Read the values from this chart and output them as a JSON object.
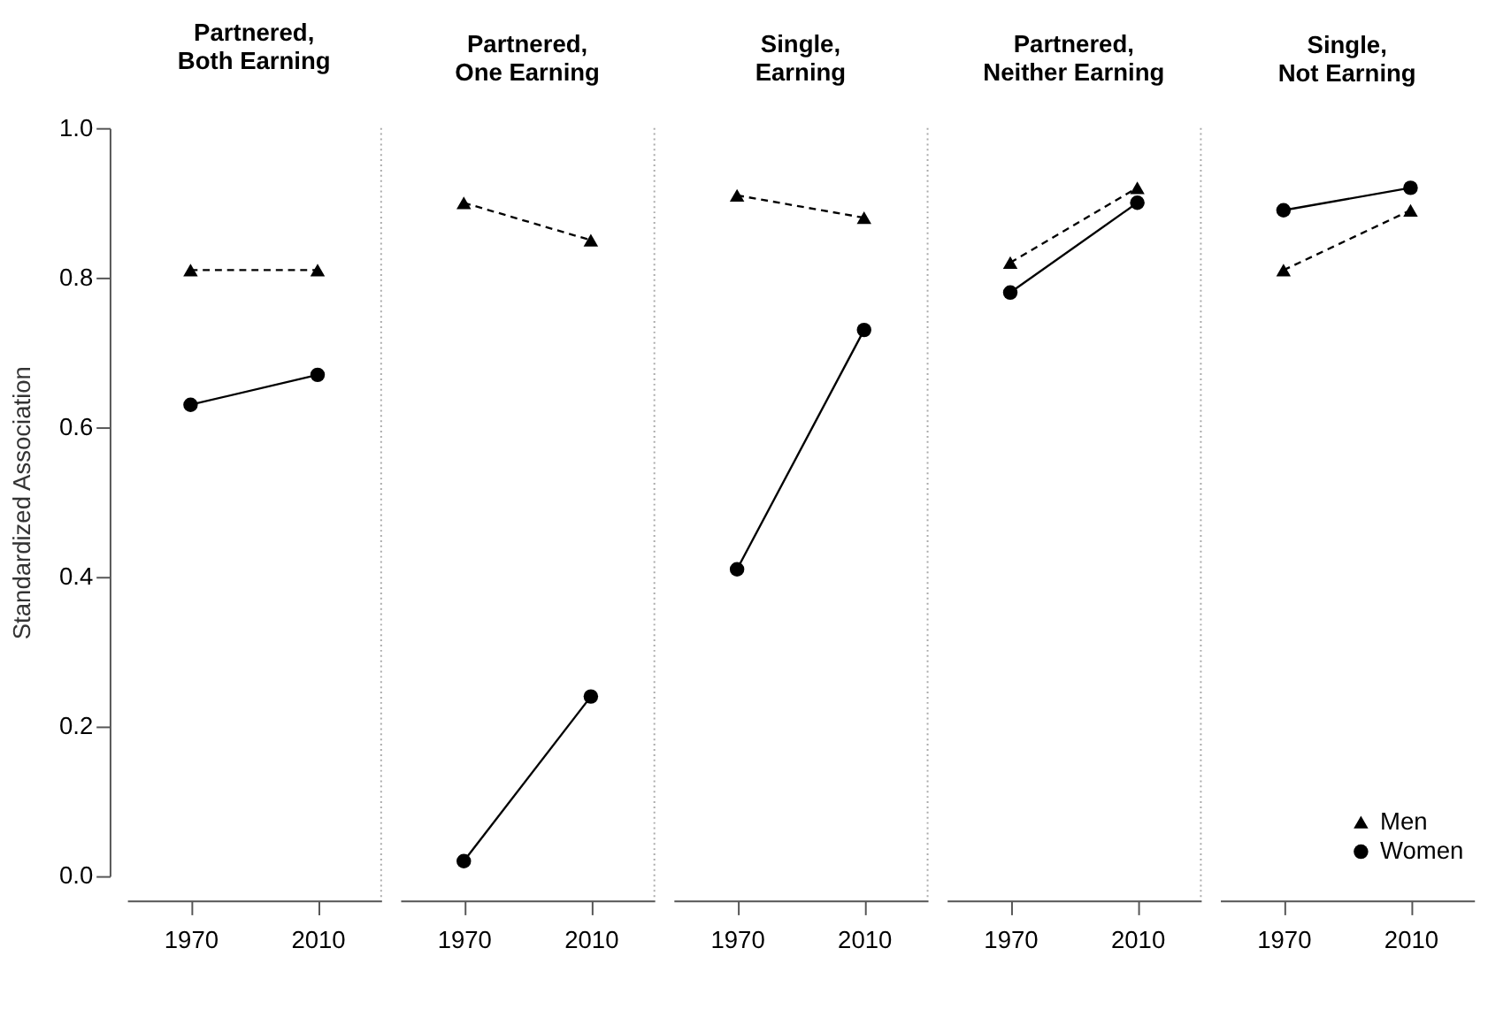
{
  "chart_data": [
    {
      "type": "line",
      "title": "Partnered,\nBoth Earning",
      "ylabel": "Standardized Association",
      "categories": [
        "1970",
        "2010"
      ],
      "ylim": [
        0,
        1.0
      ],
      "yticks": [
        {
          "value": 0,
          "label": "0.0"
        },
        0.2,
        0.4,
        0.6,
        0.8,
        {
          "value": 1.0,
          "label": "1.0"
        }
      ],
      "grid": false,
      "legend": false,
      "series": [
        {
          "color": "#000000",
          "marker": "triangle",
          "line_style": "dashed",
          "values": [
            0.81,
            0.81
          ]
        },
        {
          "color": "#000000",
          "marker": "circle",
          "line_style": "solid",
          "values": [
            0.63,
            0.67
          ]
        }
      ]
    },
    {
      "type": "line",
      "title": "Partnered,\nOne Earning",
      "categories": [
        "1970",
        "2010"
      ],
      "ylim": [
        0,
        1.0
      ],
      "tick_labels": "x",
      "grid": false,
      "legend": false,
      "series": [
        {
          "color": "#000000",
          "marker": "triangle",
          "line_style": "dashed",
          "values": [
            0.9,
            0.85
          ]
        },
        {
          "color": "#000000",
          "marker": "circle",
          "line_style": "solid",
          "values": [
            0.02,
            0.24
          ]
        }
      ]
    },
    {
      "type": "line",
      "title": "Single,\nEarning",
      "categories": [
        "1970",
        "2010"
      ],
      "ylim": [
        0,
        1.0
      ],
      "tick_labels": "x",
      "grid": false,
      "legend": false,
      "series": [
        {
          "color": "#000000",
          "marker": "triangle",
          "line_style": "dashed",
          "values": [
            0.91,
            0.88
          ]
        },
        {
          "color": "#000000",
          "marker": "circle",
          "line_style": "solid",
          "values": [
            0.41,
            0.73
          ]
        }
      ]
    },
    {
      "type": "line",
      "title": "Partnered,\nNeither Earning",
      "categories": [
        "1970",
        "2010"
      ],
      "ylim": [
        0,
        1.0
      ],
      "tick_labels": "x",
      "grid": false,
      "legend": false,
      "series": [
        {
          "color": "#000000",
          "marker": "triangle",
          "line_style": "dashed",
          "values": [
            0.82,
            0.92
          ]
        },
        {
          "color": "#000000",
          "marker": "circle",
          "line_style": "solid",
          "values": [
            0.78,
            0.9
          ]
        }
      ]
    },
    {
      "type": "line",
      "title": "Single,\nNot Earning",
      "categories": [
        "1970",
        "2010"
      ],
      "ylim": [
        0,
        1.0
      ],
      "tick_labels": "x",
      "grid": false,
      "legend": "bottom right",
      "series": [
        {
          "name": "Men",
          "color": "#000000",
          "marker": "triangle",
          "line_style": "dashed",
          "values": [
            0.81,
            0.89
          ]
        },
        {
          "name": "Women",
          "color": "#000000",
          "marker": "circle",
          "line_style": "solid",
          "values": [
            0.89,
            0.92
          ]
        }
      ]
    }
  ]
}
